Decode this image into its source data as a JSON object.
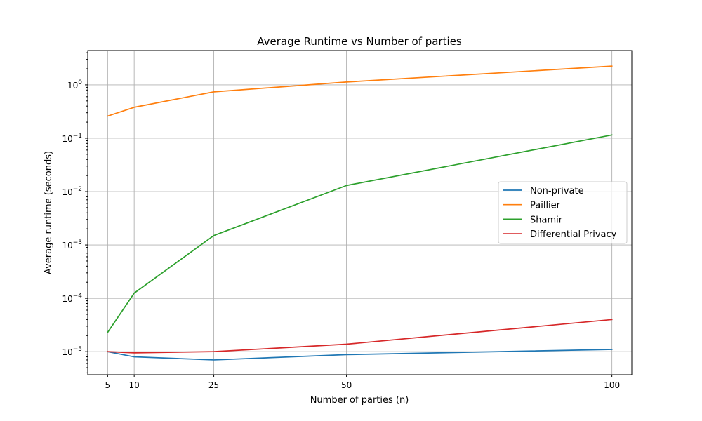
{
  "chart_data": {
    "type": "line",
    "title": "Average Runtime vs Number of parties",
    "xlabel": "Number of parties (n)",
    "ylabel": "Average runtime (seconds)",
    "x": [
      5,
      10,
      25,
      50,
      100
    ],
    "xticks": [
      5,
      10,
      25,
      50,
      100
    ],
    "xlim": [
      1.25,
      103.75
    ],
    "yscale": "log",
    "ylim": [
      3.7e-06,
      4.4
    ],
    "yticks": [
      {
        "exp": -5,
        "base": "10",
        "sup": "−5"
      },
      {
        "exp": -4,
        "base": "10",
        "sup": "−4"
      },
      {
        "exp": -3,
        "base": "10",
        "sup": "−3"
      },
      {
        "exp": -2,
        "base": "10",
        "sup": "−2"
      },
      {
        "exp": -1,
        "base": "10",
        "sup": "−1"
      },
      {
        "exp": 0,
        "base": "10",
        "sup": "0"
      }
    ],
    "grid": true,
    "legend_position": "center-right",
    "series": [
      {
        "name": "Non-private",
        "color": "#1f77b4",
        "values": [
          1e-05,
          8e-06,
          7e-06,
          8.8e-06,
          1.1e-05
        ]
      },
      {
        "name": "Paillier",
        "color": "#ff7f0e",
        "values": [
          0.26,
          0.38,
          0.74,
          1.13,
          2.25
        ]
      },
      {
        "name": "Shamir",
        "color": "#2ca02c",
        "values": [
          2.3e-05,
          0.000125,
          0.0015,
          0.013,
          0.115
        ]
      },
      {
        "name": "Differential Privacy",
        "color": "#d62728",
        "values": [
          1e-05,
          9.5e-06,
          1e-05,
          1.38e-05,
          4e-05
        ]
      }
    ]
  }
}
